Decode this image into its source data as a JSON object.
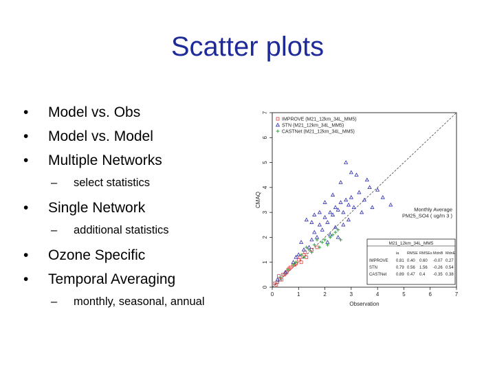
{
  "slide": {
    "title": "Scatter plots",
    "bullets": [
      {
        "text": "Model vs. Obs",
        "level": 1
      },
      {
        "text": "Model vs. Model",
        "level": 1
      },
      {
        "text": "Multiple Networks",
        "level": 1
      },
      {
        "text": "select statistics",
        "level": 2
      },
      {
        "text": "Single Network",
        "level": 1
      },
      {
        "text": "additional statistics",
        "level": 2
      },
      {
        "text": "Ozone Specific",
        "level": 1
      },
      {
        "text": "Temporal Averaging",
        "level": 1
      },
      {
        "text": "monthly, seasonal, annual",
        "level": 2
      }
    ]
  },
  "chart_data": {
    "type": "scatter",
    "xlabel": "Observation",
    "ylabel": "CMAQ",
    "xlim": [
      0,
      7
    ],
    "ylim": [
      0,
      7
    ],
    "ticks": [
      "0",
      "1",
      "2",
      "3",
      "4",
      "5",
      "6",
      "7"
    ],
    "one_to_one_line": true,
    "grid": false,
    "legend_position": "top-left",
    "annotation": [
      "Monthly Average",
      "PM25_SO4 ( ug/m 3 )"
    ],
    "series": [
      {
        "name": "IMPROVE (M21_12km_34L_MM5)",
        "marker": "square",
        "color": "#e03a3a",
        "x": [
          0.1,
          0.2,
          0.3,
          0.25,
          0.4,
          0.5,
          0.6,
          0.7,
          0.8,
          0.9,
          1.0,
          1.1,
          1.2,
          1.3,
          1.5,
          1.7,
          0.35,
          0.55,
          0.15,
          0.45,
          0.65,
          0.85,
          1.05,
          1.25
        ],
        "y": [
          0.15,
          0.2,
          0.3,
          0.45,
          0.5,
          0.55,
          0.7,
          0.8,
          0.9,
          0.95,
          1.1,
          1.0,
          1.3,
          1.2,
          1.5,
          1.6,
          0.3,
          0.6,
          0.1,
          0.5,
          0.75,
          0.9,
          1.2,
          1.4
        ]
      },
      {
        "name": "STN (M21_12km_34L_MM5)",
        "marker": "triangle",
        "color": "#2a2ab0",
        "x": [
          0.2,
          0.5,
          0.8,
          1.0,
          1.2,
          1.4,
          1.5,
          1.6,
          1.7,
          1.8,
          1.9,
          2.0,
          2.1,
          2.2,
          2.3,
          2.4,
          2.5,
          2.6,
          2.7,
          2.8,
          2.9,
          3.0,
          3.1,
          3.3,
          3.5,
          3.7,
          4.0,
          4.2,
          2.0,
          1.8,
          2.6,
          3.2,
          2.4,
          1.1,
          3.4,
          2.9,
          2.2,
          2.7,
          1.5,
          3.8,
          0.9,
          2.8,
          1.3,
          3.0,
          2.5,
          2.1,
          1.6,
          3.6,
          4.5,
          2.3
        ],
        "y": [
          0.3,
          0.6,
          1.0,
          1.3,
          1.5,
          1.6,
          1.9,
          2.2,
          2.0,
          2.5,
          2.3,
          2.8,
          2.6,
          3.0,
          2.9,
          3.2,
          3.1,
          3.4,
          3.0,
          3.5,
          3.3,
          3.6,
          3.2,
          3.8,
          3.5,
          4.0,
          3.9,
          3.6,
          3.4,
          3.0,
          4.2,
          4.5,
          2.4,
          1.8,
          3.0,
          2.7,
          2.1,
          2.5,
          2.6,
          3.2,
          1.2,
          5.0,
          2.7,
          4.6,
          2.0,
          1.8,
          2.9,
          4.3,
          3.3,
          3.7
        ]
      },
      {
        "name": "CASTNet (M21_12km_34L_MM5)",
        "marker": "plus",
        "color": "#2e9e3e",
        "x": [
          0.3,
          0.6,
          0.9,
          1.2,
          1.4,
          1.6,
          1.8,
          2.0,
          2.2,
          2.4,
          2.6,
          1.1,
          1.5,
          1.9,
          2.3,
          0.8,
          1.7,
          2.1,
          2.5,
          1.3
        ],
        "y": [
          0.4,
          0.7,
          1.0,
          1.2,
          1.5,
          1.7,
          1.6,
          1.9,
          2.0,
          2.2,
          1.9,
          1.3,
          1.4,
          1.8,
          2.1,
          0.9,
          1.9,
          1.7,
          2.3,
          1.6
        ]
      }
    ],
    "stats_table": {
      "title": "M21_12km_34L_MM5",
      "headers": [
        "",
        "ia",
        "RMSE",
        "RMSEs",
        "MdnB",
        "MdnE"
      ],
      "rows": [
        [
          "IMPROVE",
          "0.81",
          "0.40",
          "0.60",
          "-0.07",
          "0.27"
        ],
        [
          "STN",
          "0.79",
          "0.56",
          "1.56",
          "-0.26",
          "0.54"
        ],
        [
          "CASTNet",
          "0.89",
          "0.47",
          "0.4",
          "-0.35",
          "0.38"
        ]
      ]
    }
  }
}
